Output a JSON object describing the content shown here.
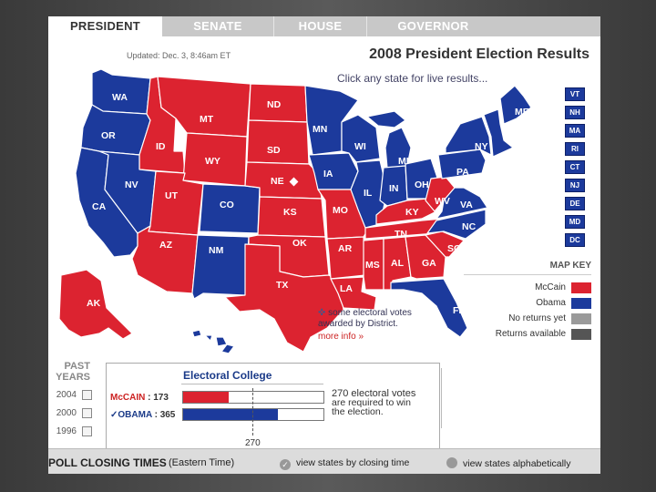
{
  "tabs": [
    {
      "label": "PRESIDENT",
      "active": true
    },
    {
      "label": "SENATE",
      "active": false
    },
    {
      "label": "HOUSE",
      "active": false
    },
    {
      "label": "GOVERNOR",
      "active": false
    }
  ],
  "header": {
    "updated": "Updated: Dec. 3, 8:46am ET",
    "title": "2008 President Election Results",
    "hint": "Click any state for live results..."
  },
  "colors": {
    "mccain": "#dc2330",
    "obama": "#1c3a9c",
    "no_returns": "#9a9a9a",
    "returns_available": "#555555"
  },
  "map_states": [
    "WA",
    "OR",
    "CA",
    "ID",
    "NV",
    "MT",
    "WY",
    "UT",
    "AZ",
    "CO",
    "NM",
    "ND",
    "SD",
    "NE",
    "KS",
    "OK",
    "TX",
    "MN",
    "IA",
    "MO",
    "AR",
    "LA",
    "WI",
    "IL",
    "MI",
    "IN",
    "OH",
    "KY",
    "TN",
    "MS",
    "AL",
    "GA",
    "FL",
    "SC",
    "NC",
    "VA",
    "WV",
    "PA",
    "NY",
    "ME",
    "AK",
    "HI"
  ],
  "small_states": [
    "VT",
    "NH",
    "MA",
    "RI",
    "CT",
    "NJ",
    "DE",
    "MD",
    "DC"
  ],
  "district_note": {
    "line1": "some electoral votes",
    "line2": "awarded by District.",
    "more": "more info »"
  },
  "map_key": {
    "title": "MAP KEY",
    "items": [
      {
        "label": "McCain"
      },
      {
        "label": "Obama"
      },
      {
        "label": "No returns yet"
      },
      {
        "label": "Returns available"
      }
    ]
  },
  "past_years": {
    "title_line1": "PAST",
    "title_line2": "YEARS",
    "years": [
      "2004",
      "2000",
      "1996"
    ]
  },
  "electoral_college": {
    "title": "Electoral College",
    "mccain_label": "McCAIN",
    "mccain_votes": "173",
    "mccain_value": 173,
    "obama_check": "✓",
    "obama_label": "OBAMA",
    "obama_votes": "365",
    "obama_value": 365,
    "max": 538,
    "threshold": 270,
    "threshold_label": "270",
    "note_line1": "270 electoral votes",
    "note_line2": "are required to win",
    "note_line3": "the election."
  },
  "poll_closing": {
    "title": "POLL CLOSING TIMES",
    "subtitle": "(Eastern Time)",
    "link1": "view states by closing time",
    "link2": "view states alphabetically"
  }
}
